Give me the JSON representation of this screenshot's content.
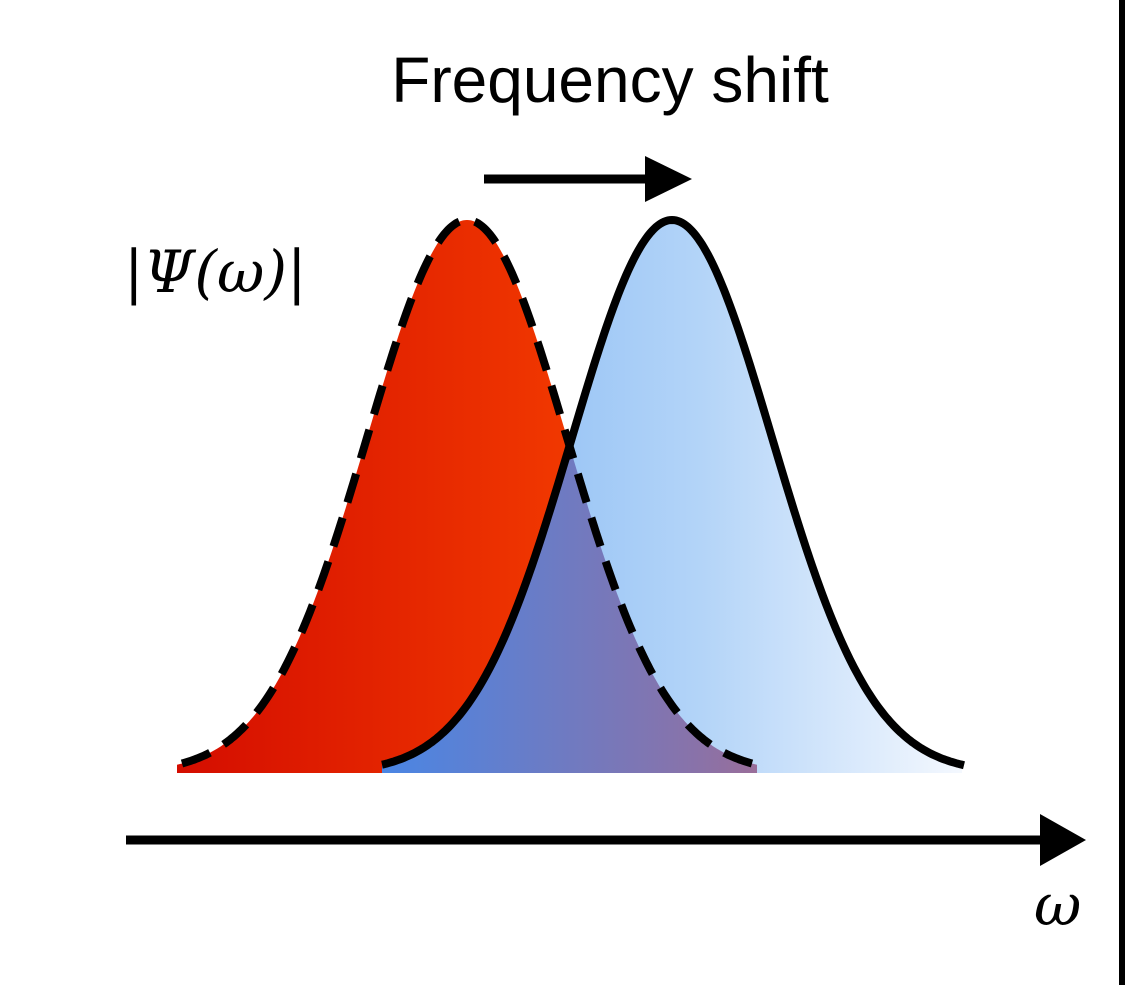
{
  "diagram": {
    "title": "Frequency shift",
    "y_label": "|Ψ(ω)|",
    "x_label": "ω",
    "colors": {
      "original_pulse_fill_dark": "#e01600",
      "original_pulse_fill_light": "#fb4a00",
      "shifted_pulse_fill_mid": "#8fc0f6",
      "shifted_pulse_fill_light": "#eaf3fd",
      "overlap_left": "#4c86e3",
      "overlap_right": "#c8606a",
      "stroke": "#000000"
    },
    "curves": [
      {
        "name": "original-pulse",
        "style": "dashed",
        "center": 0.0,
        "sigma": 1.0
      },
      {
        "name": "shifted-pulse",
        "style": "solid",
        "center": 1.0,
        "sigma": 1.0
      }
    ]
  }
}
